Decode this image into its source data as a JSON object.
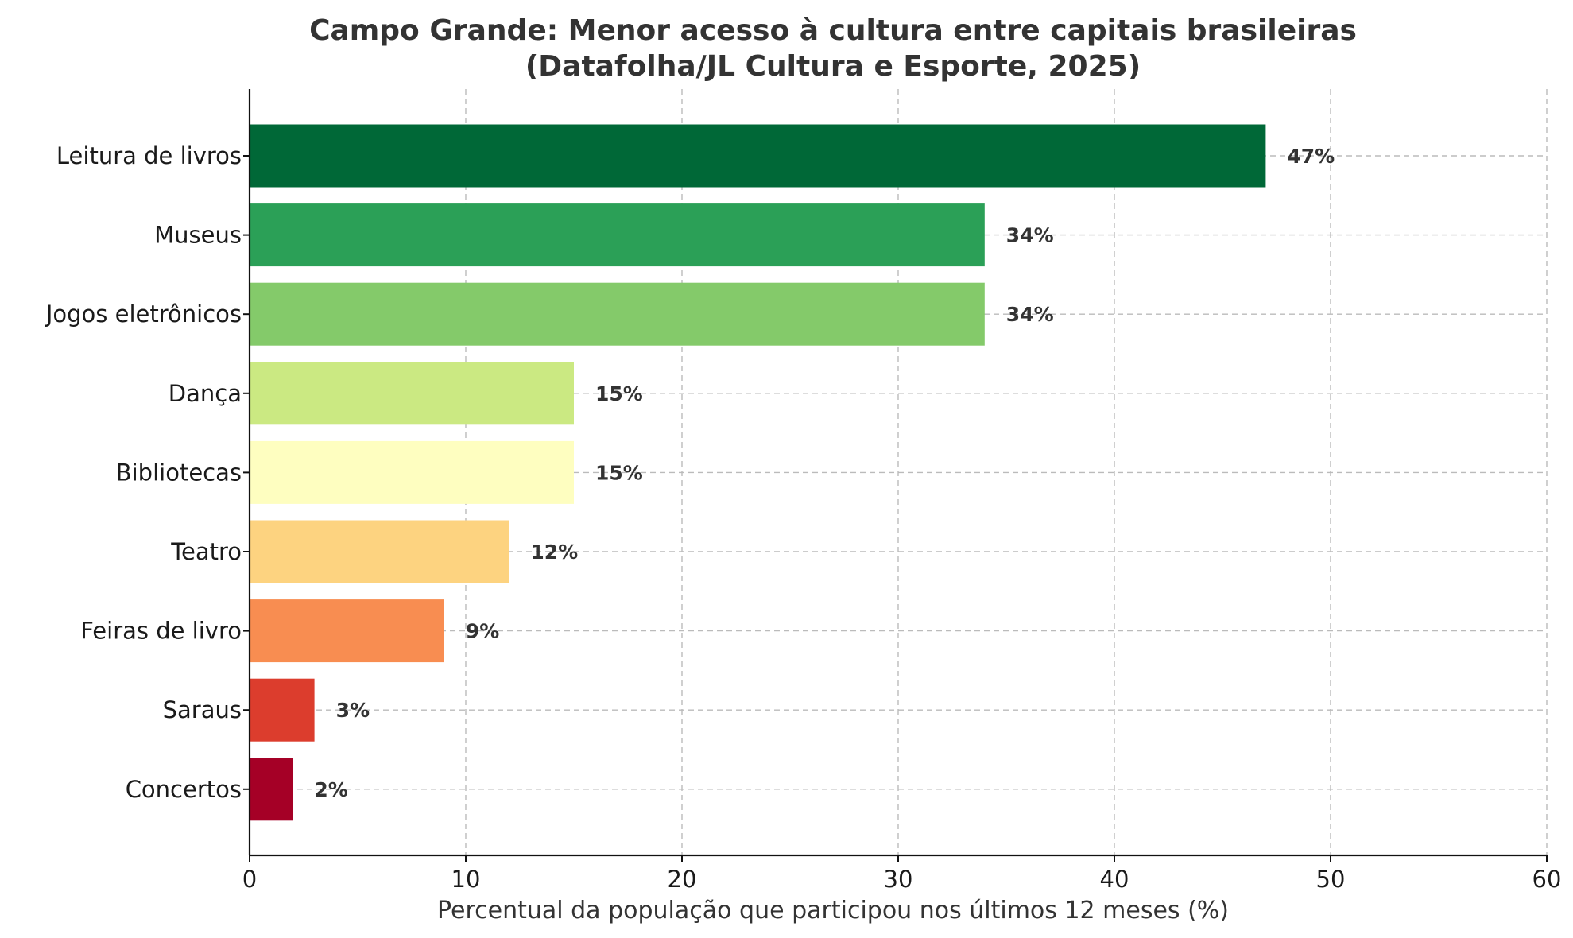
{
  "chart_data": {
    "type": "bar",
    "orientation": "horizontal",
    "title_lines": [
      "Campo Grande: Menor acesso à cultura entre capitais brasileiras",
      "(Datafolha/JL Cultura e Esporte, 2025)"
    ],
    "xlabel": "Percentual da população que participou nos últimos 12 meses (%)",
    "ylabel": "",
    "xlim": [
      0,
      60
    ],
    "xticks": [
      0,
      10,
      20,
      30,
      40,
      50,
      60
    ],
    "grid": true,
    "categories": [
      "Leitura de livros",
      "Museus",
      "Jogos eletrônicos",
      "Dança",
      "Bibliotecas",
      "Teatro",
      "Feiras de livro",
      "Saraus",
      "Concertos"
    ],
    "values": [
      47,
      34,
      34,
      15,
      15,
      12,
      9,
      3,
      2
    ],
    "value_labels": [
      "47%",
      "34%",
      "34%",
      "15%",
      "15%",
      "12%",
      "9%",
      "3%",
      "2%"
    ],
    "colors": [
      "#006837",
      "#2ba057",
      "#84ca6a",
      "#cbe982",
      "#fefec0",
      "#fdd380",
      "#f88d51",
      "#dc3d2d",
      "#a50026"
    ]
  }
}
